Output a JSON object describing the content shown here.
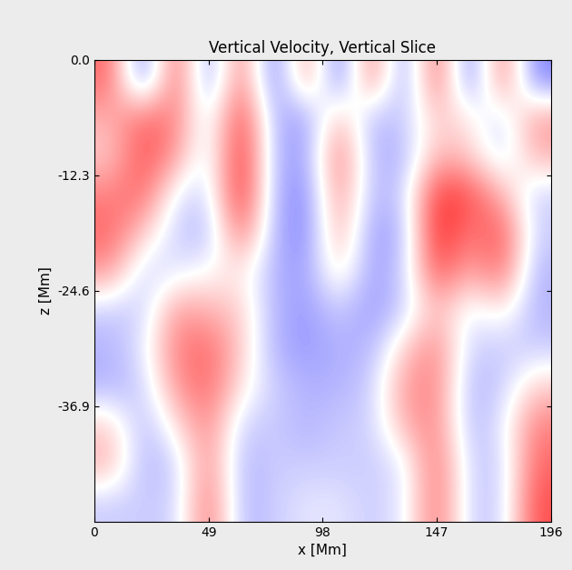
{
  "chart_data": {
    "type": "heatmap",
    "title": "Vertical Velocity, Vertical Slice",
    "x_label": "x [Mm]",
    "y_label": "z [Mm]",
    "xlim": [
      0,
      196
    ],
    "xticks": [
      0,
      49,
      98,
      147,
      196
    ],
    "ylim": [
      -49.2,
      0.0
    ],
    "yticks": [
      0.0,
      -12.3,
      -24.6,
      -36.9
    ],
    "color": "bwr",
    "color_range": [
      -1,
      1
    ],
    "cells": [
      [
        0.6,
        -0.6,
        0.7,
        -0.5,
        0.6,
        -0.6,
        0.5,
        -0.6,
        0.6,
        -0.5,
        0.7,
        -0.6,
        0.6,
        -0.5
      ],
      [
        0.3,
        0.6,
        0.5,
        -0.2,
        0.8,
        -0.3,
        -0.4,
        0.3,
        -0.3,
        -0.2,
        0.2,
        0.1,
        -0.2,
        0.4
      ],
      [
        0.2,
        0.7,
        0.4,
        -0.2,
        0.9,
        -0.3,
        -0.4,
        0.6,
        -0.3,
        -0.3,
        0.3,
        0.2,
        -0.2,
        0.3
      ],
      [
        0.5,
        0.6,
        -0.1,
        -0.2,
        0.9,
        -0.3,
        -0.5,
        0.5,
        -0.3,
        -0.2,
        0.8,
        0.7,
        0.3,
        -0.2
      ],
      [
        0.6,
        0.2,
        -0.2,
        -0.3,
        0.6,
        -0.3,
        -0.5,
        0.4,
        -0.4,
        -0.3,
        0.9,
        0.5,
        0.7,
        -0.2
      ],
      [
        0.4,
        -0.2,
        -0.1,
        0.0,
        0.1,
        -0.3,
        -0.4,
        0.2,
        -0.4,
        -0.2,
        0.7,
        0.3,
        0.6,
        -0.3
      ],
      [
        -0.2,
        -0.2,
        0.4,
        0.3,
        0.2,
        -0.3,
        -0.4,
        -0.2,
        -0.4,
        -0.2,
        0.3,
        -0.1,
        0.1,
        -0.3
      ],
      [
        -0.3,
        -0.1,
        0.5,
        0.6,
        0.2,
        -0.3,
        -0.4,
        -0.3,
        -0.3,
        0.2,
        0.5,
        -0.2,
        -0.2,
        -0.2
      ],
      [
        -0.3,
        -0.2,
        0.4,
        0.6,
        0.1,
        -0.2,
        -0.3,
        -0.3,
        -0.2,
        0.4,
        0.5,
        -0.3,
        -0.2,
        0.2
      ],
      [
        0.2,
        -0.3,
        0.1,
        0.5,
        -0.2,
        -0.2,
        -0.3,
        -0.2,
        -0.2,
        0.3,
        0.5,
        -0.3,
        -0.1,
        0.5
      ],
      [
        0.3,
        -0.3,
        -0.2,
        0.5,
        -0.3,
        -0.2,
        -0.2,
        -0.2,
        -0.2,
        -0.1,
        0.6,
        -0.2,
        -0.2,
        0.6
      ],
      [
        -0.2,
        -0.2,
        -0.2,
        0.6,
        -0.3,
        -0.2,
        -0.1,
        -0.1,
        -0.2,
        -0.1,
        0.6,
        -0.2,
        -0.2,
        0.7
      ]
    ]
  }
}
